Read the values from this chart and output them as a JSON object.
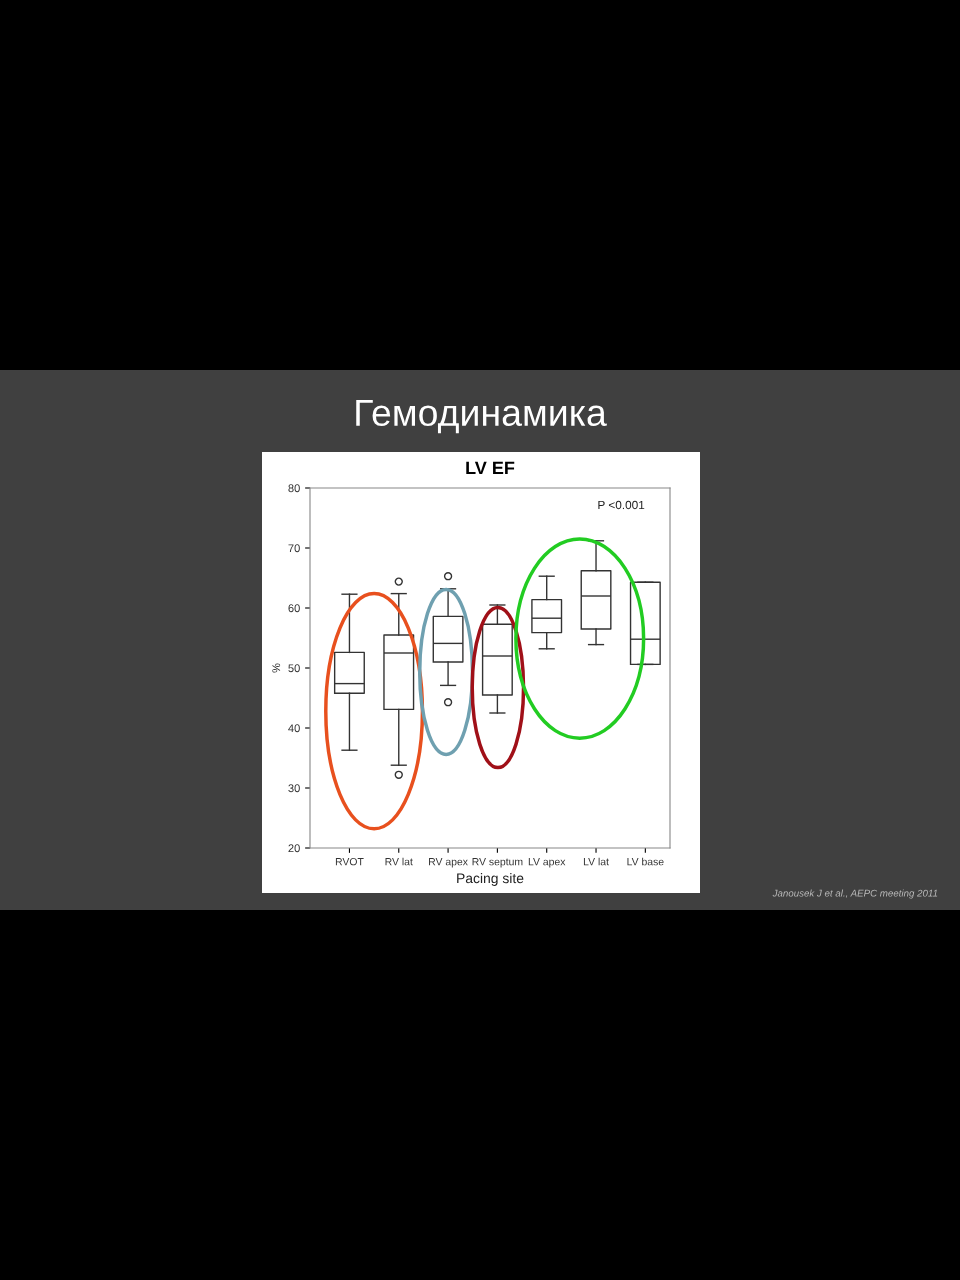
{
  "chart_data": {
    "type": "box",
    "title": "Гемодинамика",
    "subtitle": "LV EF",
    "xlabel": "Pacing site",
    "ylabel": "%",
    "categories": [
      "RVOT",
      "RV lat",
      "RV apex",
      "RV septum",
      "LV apex",
      "LV lat",
      "LV base"
    ],
    "boxes": [
      {
        "low": 36.3,
        "q1": 45.8,
        "median": 47.4,
        "q3": 52.6,
        "high": 62.3
      },
      {
        "low": 33.8,
        "q1": 43.1,
        "median": 52.5,
        "q3": 55.5,
        "high": 62.4,
        "outliers": [
          64.4,
          32.2
        ]
      },
      {
        "low": 47.1,
        "q1": 51.0,
        "median": 54.1,
        "q3": 58.6,
        "high": 63.2,
        "outliers": [
          65.3,
          44.3
        ]
      },
      {
        "low": 42.5,
        "q1": 45.5,
        "median": 52.0,
        "q3": 57.3,
        "high": 60.5
      },
      {
        "low": 53.2,
        "q1": 55.9,
        "median": 58.3,
        "q3": 61.4,
        "high": 65.3
      },
      {
        "low": 53.9,
        "q1": 56.5,
        "median": 62.0,
        "q3": 66.2,
        "high": 71.2
      },
      {
        "low": 50.6,
        "q1": 50.6,
        "median": 54.8,
        "q3": 64.3,
        "high": 64.3
      }
    ],
    "ylim": [
      20,
      80
    ],
    "yticks": [
      20,
      30,
      40,
      50,
      60,
      70,
      80
    ],
    "grid": false,
    "annotations": [
      "P <0.001",
      "Janousek J et al., AEPC meeting 2011"
    ]
  }
}
